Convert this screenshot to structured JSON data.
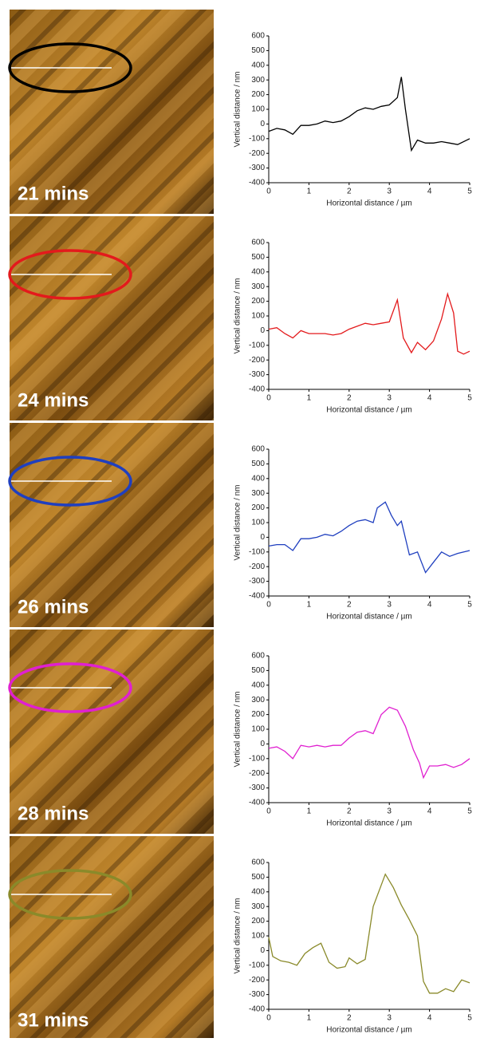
{
  "panels": [
    {
      "label": "21 mins"
    },
    {
      "label": "24 mins"
    },
    {
      "label": "26 mins"
    },
    {
      "label": "28 mins"
    },
    {
      "label": "31 mins"
    }
  ],
  "chart_data": [
    {
      "type": "line",
      "x_label": "Horizontal distance / µm",
      "y_label": "Vertical distance / nm",
      "xlim": [
        0,
        5
      ],
      "ylim": [
        -400,
        600
      ],
      "xticks": [
        0,
        1,
        2,
        3,
        4,
        5
      ],
      "yticks": [
        -400,
        -300,
        -200,
        -100,
        0,
        100,
        200,
        300,
        400,
        500,
        600
      ],
      "x": [
        0,
        0.2,
        0.4,
        0.6,
        0.8,
        1.0,
        1.2,
        1.4,
        1.6,
        1.8,
        2.0,
        2.2,
        2.4,
        2.6,
        2.8,
        3.0,
        3.2,
        3.3,
        3.4,
        3.55,
        3.7,
        3.9,
        4.1,
        4.3,
        4.5,
        4.7,
        5.0
      ],
      "series": [
        {
          "color": "#000000",
          "values": [
            -50,
            -30,
            -40,
            -70,
            -10,
            -10,
            0,
            20,
            10,
            20,
            50,
            90,
            110,
            100,
            120,
            130,
            180,
            320,
            100,
            -180,
            -110,
            -130,
            -130,
            -120,
            -130,
            -140,
            -100
          ]
        }
      ]
    },
    {
      "type": "line",
      "x_label": "Horizontal distance / µm",
      "y_label": "Vertical distance / nm",
      "xlim": [
        0,
        5
      ],
      "ylim": [
        -400,
        600
      ],
      "xticks": [
        0,
        1,
        2,
        3,
        4,
        5
      ],
      "yticks": [
        -400,
        -300,
        -200,
        -100,
        0,
        100,
        200,
        300,
        400,
        500,
        600
      ],
      "x": [
        0,
        0.2,
        0.4,
        0.6,
        0.8,
        1.0,
        1.2,
        1.4,
        1.6,
        1.8,
        2.0,
        2.2,
        2.4,
        2.6,
        2.8,
        3.0,
        3.2,
        3.35,
        3.55,
        3.7,
        3.9,
        4.1,
        4.3,
        4.45,
        4.6,
        4.7,
        4.85,
        5.0
      ],
      "series": [
        {
          "color": "#e31a1c",
          "values": [
            10,
            20,
            -20,
            -50,
            0,
            -20,
            -20,
            -20,
            -30,
            -20,
            10,
            30,
            50,
            40,
            50,
            60,
            210,
            -50,
            -150,
            -80,
            -130,
            -70,
            80,
            250,
            120,
            -140,
            -160,
            -140
          ]
        }
      ]
    },
    {
      "type": "line",
      "x_label": "Horizontal distance / µm",
      "y_label": "Vertical distance / nm",
      "xlim": [
        0,
        5
      ],
      "ylim": [
        -400,
        600
      ],
      "xticks": [
        0,
        1,
        2,
        3,
        4,
        5
      ],
      "yticks": [
        -400,
        -300,
        -200,
        -100,
        0,
        100,
        200,
        300,
        400,
        500,
        600
      ],
      "x": [
        0,
        0.2,
        0.4,
        0.6,
        0.8,
        1.0,
        1.2,
        1.4,
        1.6,
        1.8,
        2.0,
        2.2,
        2.4,
        2.6,
        2.7,
        2.9,
        3.05,
        3.2,
        3.3,
        3.5,
        3.7,
        3.9,
        4.1,
        4.3,
        4.5,
        4.7,
        5.0
      ],
      "series": [
        {
          "color": "#1f3fbf",
          "values": [
            -60,
            -50,
            -50,
            -90,
            -10,
            -10,
            0,
            20,
            10,
            40,
            80,
            110,
            120,
            100,
            200,
            240,
            150,
            80,
            110,
            -120,
            -100,
            -240,
            -170,
            -100,
            -130,
            -110,
            -90
          ]
        }
      ]
    },
    {
      "type": "line",
      "x_label": "Horizontal distance / µm",
      "y_label": "Vertical distance / nm",
      "xlim": [
        0,
        5
      ],
      "ylim": [
        -400,
        600
      ],
      "xticks": [
        0,
        1,
        2,
        3,
        4,
        5
      ],
      "yticks": [
        -400,
        -300,
        -200,
        -100,
        0,
        100,
        200,
        300,
        400,
        500,
        600
      ],
      "x": [
        0,
        0.2,
        0.4,
        0.6,
        0.8,
        1.0,
        1.2,
        1.4,
        1.6,
        1.8,
        2.0,
        2.2,
        2.4,
        2.6,
        2.8,
        3.0,
        3.2,
        3.4,
        3.6,
        3.75,
        3.85,
        4.0,
        4.2,
        4.4,
        4.6,
        4.8,
        5.0
      ],
      "series": [
        {
          "color": "#e020d0",
          "values": [
            -30,
            -20,
            -50,
            -100,
            -10,
            -20,
            -10,
            -20,
            -10,
            -10,
            40,
            80,
            90,
            70,
            200,
            250,
            230,
            120,
            -40,
            -130,
            -230,
            -150,
            -150,
            -140,
            -160,
            -140,
            -100
          ]
        }
      ]
    },
    {
      "type": "line",
      "x_label": "Horizontal distance / µm",
      "y_label": "Vertical distance / nm",
      "xlim": [
        0,
        5
      ],
      "ylim": [
        -400,
        600
      ],
      "xticks": [
        0,
        1,
        2,
        3,
        4,
        5
      ],
      "yticks": [
        -400,
        -300,
        -200,
        -100,
        0,
        100,
        200,
        300,
        400,
        500,
        600
      ],
      "x": [
        0,
        0.1,
        0.3,
        0.5,
        0.7,
        0.9,
        1.1,
        1.3,
        1.5,
        1.7,
        1.9,
        2.0,
        2.2,
        2.4,
        2.6,
        2.9,
        3.1,
        3.3,
        3.5,
        3.7,
        3.85,
        4.0,
        4.2,
        4.4,
        4.6,
        4.8,
        5.0
      ],
      "series": [
        {
          "color": "#8a8a2a",
          "values": [
            90,
            -40,
            -70,
            -80,
            -100,
            -20,
            20,
            50,
            -80,
            -120,
            -110,
            -50,
            -90,
            -60,
            300,
            520,
            430,
            310,
            210,
            100,
            -210,
            -290,
            -290,
            -260,
            -280,
            -200,
            -220
          ]
        }
      ]
    }
  ]
}
